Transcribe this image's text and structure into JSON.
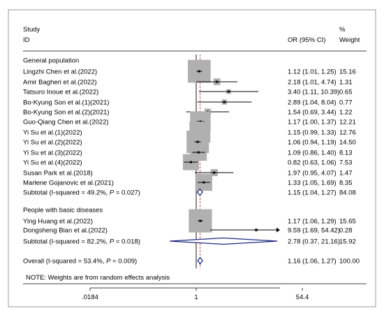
{
  "chart_data": {
    "type": "forest",
    "header": {
      "study_line1": "Study",
      "study_line2": "ID",
      "or_label": "OR (95% CI)",
      "weight_line1": "%",
      "weight_line2": "Weight"
    },
    "x_axis": {
      "scale": "log",
      "ticks": [
        {
          "value": 0.0184,
          "label": ".0184"
        },
        {
          "value": 1,
          "label": "1"
        },
        {
          "value": 54.4,
          "label": "54.4"
        }
      ],
      "reference_value": 1,
      "overall_dashed_line_value": 1.16
    },
    "groups": [
      {
        "title": "General population",
        "studies": [
          {
            "name": "Lingzhi Chen et al.(2022)",
            "or": 1.12,
            "lo": 1.01,
            "hi": 1.25,
            "ci_text": "1.12 (1.01, 1.25)",
            "weight": 15.16,
            "weight_text": "15.16"
          },
          {
            "name": "Amir Bagheri et al.(2022)",
            "or": 2.18,
            "lo": 1.01,
            "hi": 4.74,
            "ci_text": "2.18 (1.01, 4.74)",
            "weight": 1.31,
            "weight_text": "1.31"
          },
          {
            "name": "Tatsuro Inoue et al.(2022)",
            "or": 3.4,
            "lo": 1.11,
            "hi": 10.39,
            "ci_text": "3.40 (1.11, 10.39)",
            "weight": 0.65,
            "weight_text": "0.65"
          },
          {
            "name": "Bo-Kyung Son et al.(1)(2021)",
            "or": 2.89,
            "lo": 1.04,
            "hi": 8.04,
            "ci_text": "2.89 (1.04, 8.04)",
            "weight": 0.77,
            "weight_text": "0.77"
          },
          {
            "name": "Bo-Kyung Son et al.(2)(2021)",
            "or": 1.54,
            "lo": 0.69,
            "hi": 3.44,
            "ci_text": "1.54 (0.69, 3.44)",
            "weight": 1.22,
            "weight_text": "1.22"
          },
          {
            "name": "Guo-Qiang Chen et al.(2022)",
            "or": 1.17,
            "lo": 1.0,
            "hi": 1.37,
            "ci_text": "1.17 (1.00, 1.37)",
            "weight": 12.21,
            "weight_text": "12.21"
          },
          {
            "name": "Yi Su et al.(1)(2022)",
            "or": 1.15,
            "lo": 0.99,
            "hi": 1.33,
            "ci_text": "1.15 (0.99, 1.33)",
            "weight": 12.76,
            "weight_text": "12.76"
          },
          {
            "name": "Yi Su et al.(2)(2022)",
            "or": 1.06,
            "lo": 0.94,
            "hi": 1.19,
            "ci_text": "1.06 (0.94, 1.19)",
            "weight": 14.5,
            "weight_text": "14.50"
          },
          {
            "name": "Yi Su et al.(3)(2022)",
            "or": 1.09,
            "lo": 0.86,
            "hi": 1.4,
            "ci_text": "1.09 (0.86, 1.40)",
            "weight": 8.13,
            "weight_text": "8.13"
          },
          {
            "name": "Yi Su et al.(4)(2022)",
            "or": 0.82,
            "lo": 0.63,
            "hi": 1.06,
            "ci_text": "0.82 (0.63, 1.06)",
            "weight": 7.53,
            "weight_text": "7.53"
          },
          {
            "name": "Susan Park et al.(2018)",
            "or": 1.97,
            "lo": 0.95,
            "hi": 4.07,
            "ci_text": "1.97 (0.95, 4.07)",
            "weight": 1.47,
            "weight_text": "1.47"
          },
          {
            "name": "Marlene Gojanovic et al.(2021)",
            "or": 1.33,
            "lo": 1.05,
            "hi": 1.69,
            "ci_text": "1.33 (1.05, 1.69)",
            "weight": 8.35,
            "weight_text": "8.35"
          }
        ],
        "subtotal": {
          "label_prefix": "Subtotal  (I-squared = 49.2%, ",
          "p_symbol": "P",
          "label_suffix": "= 0.027)",
          "or": 1.15,
          "lo": 1.04,
          "hi": 1.27,
          "ci_text": "1.15 (1.04, 1.27)",
          "weight_text": "84.08"
        }
      },
      {
        "title": "People with basic diseases",
        "studies": [
          {
            "name": "Ying Huang et al.(2022)",
            "or": 1.17,
            "lo": 1.06,
            "hi": 1.29,
            "ci_text": "1.17 (1.06, 1.29)",
            "weight": 15.65,
            "weight_text": "15.65"
          },
          {
            "name": "Dongsheng Bian et al.(2022)",
            "or": 9.59,
            "lo": 1.69,
            "hi": 54.42,
            "ci_text": "9.59 (1.69, 54.42)",
            "weight": 0.28,
            "weight_text": "0.28"
          }
        ],
        "subtotal": {
          "label_prefix": "Subtotal  (I-squared = 82.2%, ",
          "p_symbol": "P",
          "label_suffix": "= 0.018)",
          "or": 2.78,
          "lo": 0.37,
          "hi": 21.16,
          "ci_text": "2.78 (0.37, 21.16)",
          "weight_text": "15.92"
        }
      }
    ],
    "overall": {
      "label_prefix": "Overall  (I-squared = 53.4%, ",
      "p_symbol": "P",
      "label_suffix": "= 0.009)",
      "or": 1.16,
      "lo": 1.06,
      "hi": 1.27,
      "ci_text": "1.16 (1.06, 1.27)",
      "weight_text": "100.00"
    },
    "note": "NOTE: Weights are from random effects analysis",
    "colors": {
      "box": "#b0b0b0",
      "diamond": "#1f2a80",
      "refline": "#000000",
      "dashline": "#c0392b",
      "frame": "#9a9a9a"
    }
  }
}
